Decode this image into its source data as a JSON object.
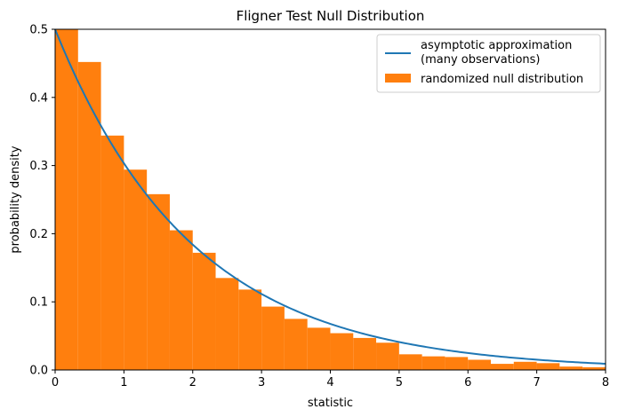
{
  "chart_data": {
    "type": "bar",
    "title": "Fligner Test Null Distribution",
    "xlabel": "statistic",
    "ylabel": "probability density",
    "xlim": [
      0,
      8
    ],
    "ylim": [
      0,
      0.5
    ],
    "xticks": [
      0,
      1,
      2,
      3,
      4,
      5,
      6,
      7,
      8
    ],
    "yticks": [
      0.0,
      0.1,
      0.2,
      0.3,
      0.4,
      0.5
    ],
    "xtick_labels": [
      "0",
      "1",
      "2",
      "3",
      "4",
      "5",
      "6",
      "7",
      "8"
    ],
    "ytick_labels": [
      "0.0",
      "0.1",
      "0.2",
      "0.3",
      "0.4",
      "0.5"
    ],
    "grid": false,
    "legend_position": "upper right",
    "series": [
      {
        "name": "asymptotic approximation\n(many observations)",
        "name_lines": [
          "asymptotic approximation",
          "(many observations)"
        ],
        "type": "line",
        "color": "#1f77b4",
        "function": "0.5*exp(-x/2)",
        "x_range": [
          0,
          8
        ]
      },
      {
        "name": "randomized null distribution",
        "type": "histogram",
        "color": "#ff7f0e",
        "bin_width": 0.3333,
        "bin_edges_start": 0,
        "values": [
          0.502,
          0.452,
          0.344,
          0.294,
          0.258,
          0.205,
          0.172,
          0.135,
          0.118,
          0.093,
          0.075,
          0.062,
          0.054,
          0.047,
          0.04,
          0.023,
          0.02,
          0.019,
          0.015,
          0.009,
          0.012,
          0.01,
          0.005,
          0.004
        ]
      }
    ]
  }
}
